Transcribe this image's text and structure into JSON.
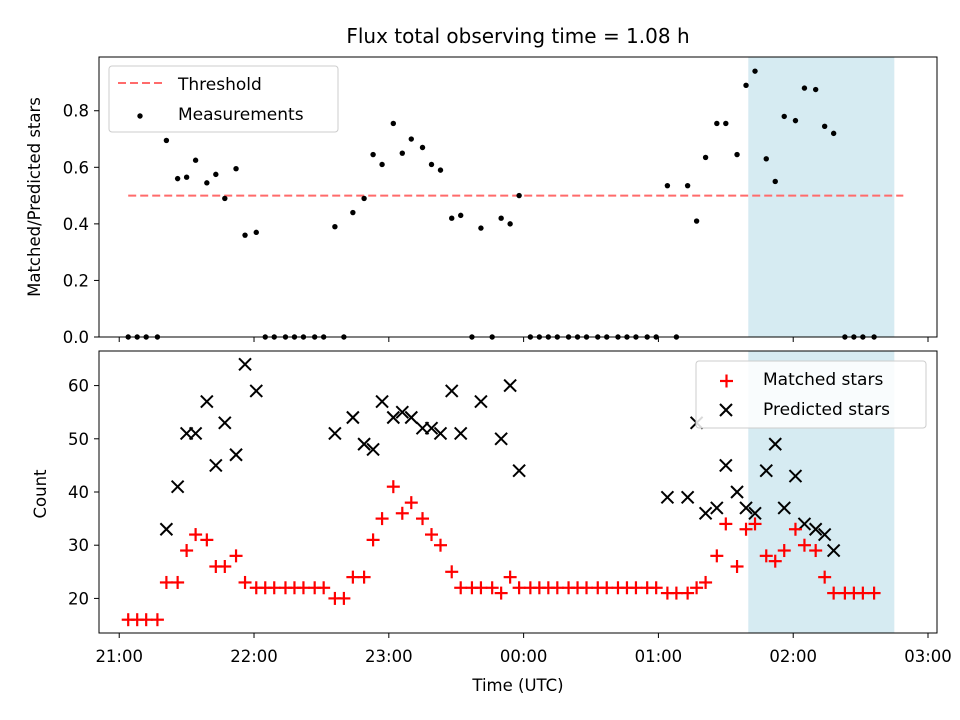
{
  "chart_data": [
    {
      "type": "scatter",
      "title": "Flux total observing time = 1.08 h",
      "xlabel": "",
      "ylabel": "Matched/Predicted stars",
      "xlim": [
        -9,
        364
      ],
      "ylim": [
        0,
        0.99
      ],
      "yticks": [
        0.0,
        0.2,
        0.4,
        0.6,
        0.8
      ],
      "ytick_labels": [
        "0.0",
        "0.2",
        "0.4",
        "0.6",
        "0.8"
      ],
      "x_unit": "minutes after 21:00 UTC",
      "shaded_region": [
        280,
        345
      ],
      "shade_color": "#add8e6",
      "legend_position": "upper left",
      "threshold": {
        "name": "Threshold",
        "x": [
          4,
          349
        ],
        "y": 0.5,
        "color": "#ff6b6b"
      },
      "series": [
        {
          "name": "Measurements",
          "color": "#000000",
          "points": [
            [
              4,
              0
            ],
            [
              8,
              0
            ],
            [
              12,
              0
            ],
            [
              17,
              0
            ],
            [
              21,
              0.695
            ],
            [
              26,
              0.56
            ],
            [
              30,
              0.565
            ],
            [
              34,
              0.625
            ],
            [
              39,
              0.545
            ],
            [
              43,
              0.575
            ],
            [
              47,
              0.49
            ],
            [
              52,
              0.595
            ],
            [
              56,
              0.36
            ],
            [
              61,
              0.37
            ],
            [
              65,
              0
            ],
            [
              69,
              0
            ],
            [
              74,
              0
            ],
            [
              78,
              0
            ],
            [
              82,
              0
            ],
            [
              87,
              0
            ],
            [
              91,
              0
            ],
            [
              96,
              0.39
            ],
            [
              100,
              0
            ],
            [
              104,
              0.44
            ],
            [
              109,
              0.49
            ],
            [
              113,
              0.645
            ],
            [
              117,
              0.61
            ],
            [
              122,
              0.755
            ],
            [
              126,
              0.65
            ],
            [
              130,
              0.7
            ],
            [
              135,
              0.67
            ],
            [
              139,
              0.61
            ],
            [
              143,
              0.59
            ],
            [
              148,
              0.42
            ],
            [
              152,
              0.43
            ],
            [
              157,
              0
            ],
            [
              161,
              0.385
            ],
            [
              166,
              0
            ],
            [
              170,
              0.42
            ],
            [
              174,
              0.4
            ],
            [
              178,
              0.5
            ],
            [
              183,
              0
            ],
            [
              187,
              0
            ],
            [
              191,
              0
            ],
            [
              195,
              0
            ],
            [
              200,
              0
            ],
            [
              204,
              0
            ],
            [
              208,
              0
            ],
            [
              213,
              0
            ],
            [
              217,
              0
            ],
            [
              222,
              0
            ],
            [
              226,
              0
            ],
            [
              230,
              0
            ],
            [
              235,
              0
            ],
            [
              239,
              0
            ],
            [
              244,
              0.535
            ],
            [
              248,
              0
            ],
            [
              253,
              0.535
            ],
            [
              257,
              0.41
            ],
            [
              261,
              0.635
            ],
            [
              266,
              0.755
            ],
            [
              270,
              0.755
            ],
            [
              275,
              0.645
            ],
            [
              279,
              0.89
            ],
            [
              283,
              0.94
            ],
            [
              288,
              0.63
            ],
            [
              292,
              0.55
            ],
            [
              296,
              0.78
            ],
            [
              301,
              0.765
            ],
            [
              305,
              0.88
            ],
            [
              310,
              0.875
            ],
            [
              314,
              0.745
            ],
            [
              318,
              0.72
            ],
            [
              323,
              0
            ],
            [
              327,
              0
            ],
            [
              331,
              0
            ],
            [
              336,
              0
            ]
          ]
        }
      ]
    },
    {
      "type": "scatter",
      "title": "",
      "xlabel": "Time (UTC)",
      "ylabel": "Count",
      "xlim": [
        -9,
        364
      ],
      "ylim": [
        13.5,
        66.5
      ],
      "yticks": [
        20,
        30,
        40,
        50,
        60
      ],
      "ytick_labels": [
        "20",
        "30",
        "40",
        "50",
        "60"
      ],
      "xticks": [
        0,
        60,
        120,
        180,
        240,
        300,
        360
      ],
      "xtick_labels": [
        "21:00",
        "22:00",
        "23:00",
        "00:00",
        "01:00",
        "02:00",
        "03:00"
      ],
      "x_unit": "minutes after 21:00 UTC",
      "shaded_region": [
        280,
        345
      ],
      "shade_color": "#add8e6",
      "legend_position": "upper right",
      "series": [
        {
          "name": "Matched stars",
          "color": "#ff0000",
          "marker": "+",
          "points": [
            [
              4,
              16
            ],
            [
              8,
              16
            ],
            [
              12,
              16
            ],
            [
              17,
              16
            ],
            [
              21,
              23
            ],
            [
              26,
              23
            ],
            [
              30,
              29
            ],
            [
              34,
              32
            ],
            [
              39,
              31
            ],
            [
              43,
              26
            ],
            [
              47,
              26
            ],
            [
              52,
              28
            ],
            [
              56,
              23
            ],
            [
              61,
              22
            ],
            [
              65,
              22
            ],
            [
              69,
              22
            ],
            [
              74,
              22
            ],
            [
              78,
              22
            ],
            [
              82,
              22
            ],
            [
              87,
              22
            ],
            [
              91,
              22
            ],
            [
              96,
              20
            ],
            [
              100,
              20
            ],
            [
              104,
              24
            ],
            [
              109,
              24
            ],
            [
              113,
              31
            ],
            [
              117,
              35
            ],
            [
              122,
              41
            ],
            [
              126,
              36
            ],
            [
              130,
              38
            ],
            [
              135,
              35
            ],
            [
              139,
              32
            ],
            [
              143,
              30
            ],
            [
              148,
              25
            ],
            [
              152,
              22
            ],
            [
              157,
              22
            ],
            [
              161,
              22
            ],
            [
              166,
              22
            ],
            [
              170,
              21
            ],
            [
              174,
              24
            ],
            [
              178,
              22
            ],
            [
              183,
              22
            ],
            [
              187,
              22
            ],
            [
              191,
              22
            ],
            [
              195,
              22
            ],
            [
              200,
              22
            ],
            [
              204,
              22
            ],
            [
              208,
              22
            ],
            [
              213,
              22
            ],
            [
              217,
              22
            ],
            [
              222,
              22
            ],
            [
              226,
              22
            ],
            [
              230,
              22
            ],
            [
              235,
              22
            ],
            [
              239,
              22
            ],
            [
              244,
              21
            ],
            [
              248,
              21
            ],
            [
              253,
              21
            ],
            [
              257,
              22
            ],
            [
              261,
              23
            ],
            [
              266,
              28
            ],
            [
              270,
              34
            ],
            [
              275,
              26
            ],
            [
              279,
              33
            ],
            [
              283,
              34
            ],
            [
              288,
              28
            ],
            [
              292,
              27
            ],
            [
              296,
              29
            ],
            [
              301,
              33
            ],
            [
              305,
              30
            ],
            [
              310,
              29
            ],
            [
              314,
              24
            ],
            [
              318,
              21
            ],
            [
              323,
              21
            ],
            [
              327,
              21
            ],
            [
              331,
              21
            ],
            [
              336,
              21
            ]
          ]
        },
        {
          "name": "Predicted stars",
          "color": "#000000",
          "marker": "x",
          "points": [
            [
              21,
              33
            ],
            [
              26,
              41
            ],
            [
              30,
              51
            ],
            [
              34,
              51
            ],
            [
              39,
              57
            ],
            [
              43,
              45
            ],
            [
              47,
              53
            ],
            [
              52,
              47
            ],
            [
              56,
              64
            ],
            [
              61,
              59
            ],
            [
              96,
              51
            ],
            [
              104,
              54
            ],
            [
              109,
              49
            ],
            [
              113,
              48
            ],
            [
              117,
              57
            ],
            [
              122,
              54
            ],
            [
              126,
              55
            ],
            [
              130,
              54
            ],
            [
              135,
              52
            ],
            [
              139,
              52
            ],
            [
              143,
              51
            ],
            [
              148,
              59
            ],
            [
              152,
              51
            ],
            [
              161,
              57
            ],
            [
              170,
              50
            ],
            [
              174,
              60
            ],
            [
              178,
              44
            ],
            [
              244,
              39
            ],
            [
              253,
              39
            ],
            [
              257,
              53
            ],
            [
              261,
              36
            ],
            [
              266,
              37
            ],
            [
              270,
              45
            ],
            [
              275,
              40
            ],
            [
              279,
              37
            ],
            [
              283,
              36
            ],
            [
              288,
              44
            ],
            [
              292,
              49
            ],
            [
              296,
              37
            ],
            [
              301,
              43
            ],
            [
              305,
              34
            ],
            [
              310,
              33
            ],
            [
              314,
              32
            ],
            [
              318,
              29
            ]
          ]
        }
      ]
    }
  ]
}
